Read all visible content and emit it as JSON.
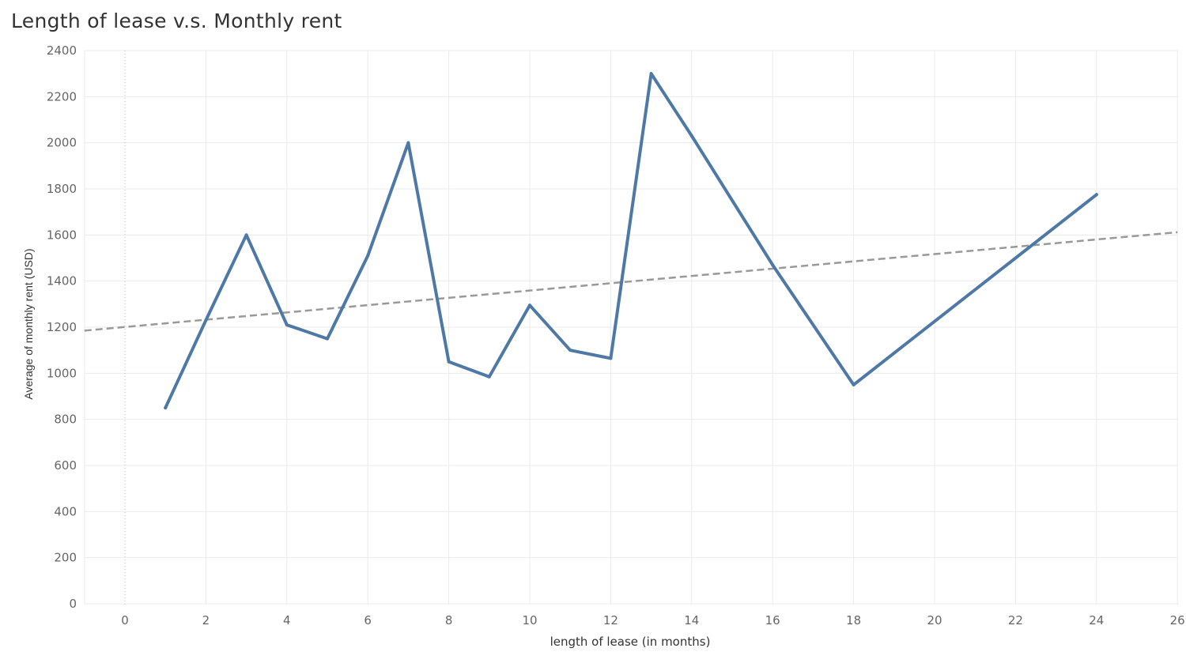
{
  "chart_data": {
    "type": "line",
    "title": "Length of lease v.s. Monthly rent",
    "xlabel": "length of lease (in months)",
    "ylabel": "Average of monthly rent (USD)",
    "xlim": [
      -1,
      26
    ],
    "ylim": [
      0,
      2400
    ],
    "xticks": [
      "0",
      "2",
      "4",
      "6",
      "8",
      "10",
      "12",
      "14",
      "16",
      "18",
      "20",
      "22",
      "24",
      "26"
    ],
    "yticks": [
      "0",
      "200",
      "400",
      "600",
      "800",
      "1000",
      "1200",
      "1400",
      "1600",
      "1800",
      "2000",
      "2200",
      "2400"
    ],
    "grid": true,
    "series": [
      {
        "x": [
          1,
          2,
          3,
          4,
          5,
          6,
          7,
          8,
          9,
          10,
          11,
          12,
          13,
          14,
          16,
          18,
          24
        ],
        "values": [
          850,
          1230,
          1600,
          1210,
          1150,
          1510,
          2000,
          1050,
          985,
          1295,
          1100,
          1065,
          2300,
          2030,
          1470,
          950,
          1775
        ]
      }
    ],
    "trend_line": {
      "style": "dashed",
      "x": [
        -1,
        26
      ],
      "y": [
        1185,
        1612
      ]
    },
    "colors": {
      "series": "#4e79a7",
      "trend": "#999999",
      "grid": "#ebebeb"
    }
  }
}
